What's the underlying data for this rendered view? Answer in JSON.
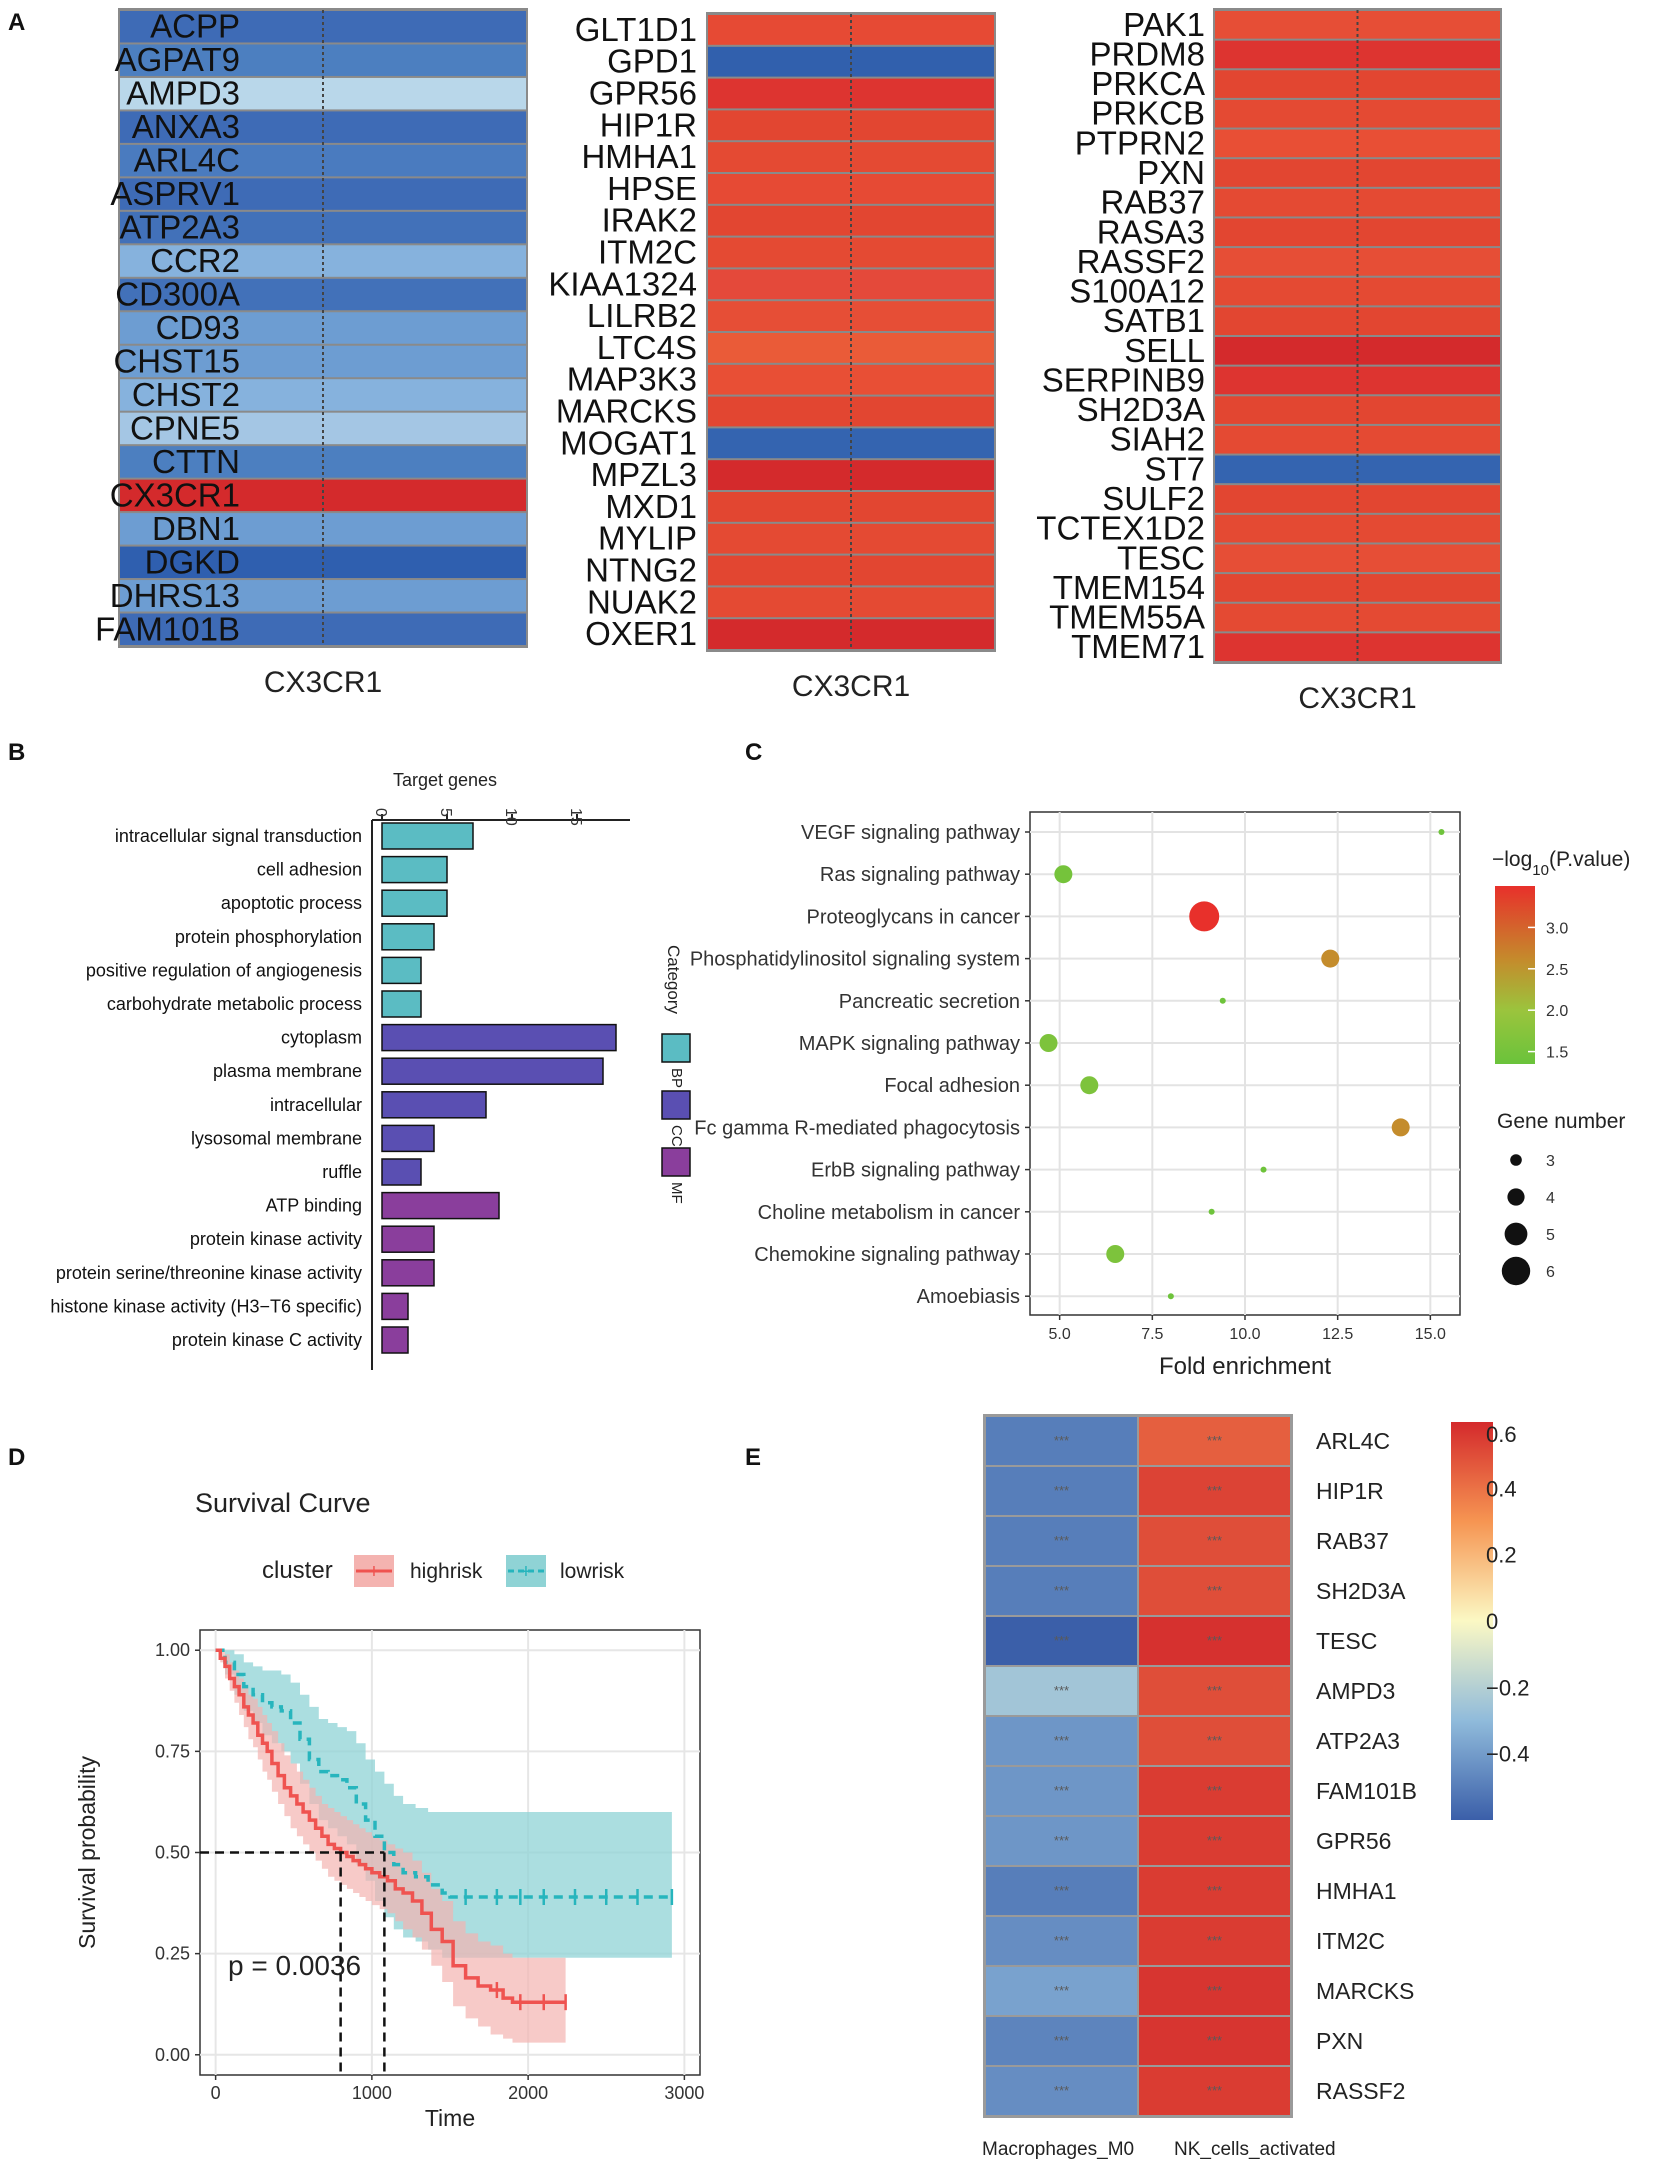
{
  "figure": {
    "panel_labels": [
      "A",
      "B",
      "C",
      "D",
      "E"
    ]
  },
  "colors": {
    "red_strong": "#d42a2c",
    "red": "#e24631",
    "orange_red": "#ea5b38",
    "blue_dark": "#2f5faf",
    "blue": "#3e6bb6",
    "blue_mid": "#4c7fc0",
    "blue_light": "#86b2dd",
    "blue_pale": "#b9d7ea",
    "bp": "#5bbcc3",
    "cc": "#5a4fb2",
    "mf": "#8a3e9c",
    "ci_high": "#f4b3b0",
    "ci_low": "#8fd3d5",
    "line_high": "#ef5350",
    "line_low": "#27b5bd"
  },
  "chart_data": [
    {
      "panel": "A",
      "type": "heatmap",
      "xlabel": "CX3CR1",
      "columns": [
        {
          "xlabel": "CX3CR1",
          "genes": [
            "ACPP",
            "AGPAT9",
            "AMPD3",
            "ANXA3",
            "ARL4C",
            "ASPRV1",
            "ATP2A3",
            "CCR2",
            "CD300A",
            "CD93",
            "CHST15",
            "CHST2",
            "CPNE5",
            "CTTN",
            "CX3CR1",
            "DBN1",
            "DGKD",
            "DHRS13",
            "FAM101B"
          ],
          "colors": [
            "#3e6bb6",
            "#4c7fc0",
            "#b9d7ea",
            "#3e6bb6",
            "#4a7bbf",
            "#3e6bb6",
            "#4271b9",
            "#86b2dd",
            "#4271b9",
            "#6d9dd2",
            "#6d9dd2",
            "#86b2dd",
            "#a4c6e4",
            "#4c7fc0",
            "#d42a2c",
            "#6d9dd2",
            "#2f5faf",
            "#6d9dd2",
            "#3e6bb6"
          ],
          "markers": "*******"
        },
        {
          "xlabel": "CX3CR1",
          "genes": [
            "GLT1D1",
            "GPD1",
            "GPR56",
            "HIP1R",
            "HMHA1",
            "HPSE",
            "IRAK2",
            "ITM2C",
            "KIAA1324",
            "LILRB2",
            "LTC4S",
            "MAP3K3",
            "MARCKS",
            "MOGAT1",
            "MPZL3",
            "MXD1",
            "MYLIP",
            "NTNG2",
            "NUAK2",
            "OXER1"
          ],
          "colors": [
            "#e64a34",
            "#3160ad",
            "#dd3430",
            "#e24631",
            "#e44a33",
            "#e64a34",
            "#e24631",
            "#e44a33",
            "#e4493a",
            "#e64e36",
            "#ea5b38",
            "#e84f35",
            "#e24631",
            "#3464b0",
            "#d42a2c",
            "#e24631",
            "#e44a33",
            "#e24631",
            "#e44a33",
            "#d42a2c"
          ],
          "markers": "*******"
        },
        {
          "xlabel": "CX3CR1",
          "genes": [
            "PAK1",
            "PRDM8",
            "PRKCA",
            "PRKCB",
            "PTPRN2",
            "PXN",
            "RAB37",
            "RASA3",
            "RASSF2",
            "S100A12",
            "SATB1",
            "SELL",
            "SERPINB9",
            "SH2D3A",
            "SIAH2",
            "ST7",
            "SULF2",
            "TCTEX1D2",
            "TESC",
            "TMEM154",
            "TMEM55A",
            "TMEM71"
          ],
          "colors": [
            "#e64e36",
            "#dd3430",
            "#e24631",
            "#e44a33",
            "#e84f35",
            "#e24631",
            "#e44a33",
            "#e24631",
            "#e64e36",
            "#e44a33",
            "#e24631",
            "#d42a2c",
            "#dd3430",
            "#e24631",
            "#e44a33",
            "#3464b0",
            "#e24631",
            "#e44a33",
            "#e64e36",
            "#e24631",
            "#e44a33",
            "#dd3430"
          ],
          "markers": "*******"
        }
      ]
    },
    {
      "panel": "B",
      "type": "bar",
      "orientation": "horizontal",
      "title": "Target genes",
      "xlim": [
        0,
        19
      ],
      "xticks": [
        0,
        5,
        10,
        15
      ],
      "categories": [
        "intracellular signal transduction",
        "cell adhesion",
        "apoptotic process",
        "protein phosphorylation",
        "positive regulation of angiogenesis",
        "carbohydrate metabolic process",
        "cytoplasm",
        "plasma membrane",
        "intracellular",
        "lysosomal membrane",
        "ruffle",
        "ATP binding",
        "protein kinase activity",
        "protein serine/threonine kinase activity",
        "histone kinase activity (H3−T6 specific)",
        "protein kinase C activity"
      ],
      "values": [
        7,
        5,
        5,
        4,
        3,
        3,
        18,
        17,
        8,
        4,
        3,
        9,
        4,
        4,
        2,
        2
      ],
      "groups": [
        "BP",
        "BP",
        "BP",
        "BP",
        "BP",
        "BP",
        "CC",
        "CC",
        "CC",
        "CC",
        "CC",
        "MF",
        "MF",
        "MF",
        "MF",
        "MF"
      ],
      "legend_title": "Category",
      "legend": [
        "BP",
        "CC",
        "MF"
      ]
    },
    {
      "panel": "C",
      "type": "scatter",
      "xlabel": "Fold enrichment",
      "xlim": [
        4.2,
        15.8
      ],
      "xticks": [
        5.0,
        7.5,
        10.0,
        12.5,
        15.0
      ],
      "xtick_labels": [
        "5.0",
        "7.5",
        "10.0",
        "12.5",
        "15.0"
      ],
      "categories": [
        "VEGF signaling pathway",
        "Ras signaling pathway",
        "Proteoglycans in cancer",
        "Phosphatidylinositol signaling system",
        "Pancreatic secretion",
        "MAPK signaling pathway",
        "Focal adhesion",
        "Fc gamma R-mediated phagocytosis",
        "ErbB signaling pathway",
        "Choline metabolism in cancer",
        "Chemokine signaling pathway",
        "Amoebiasis"
      ],
      "fold_enrichment": [
        15.3,
        5.1,
        8.9,
        12.3,
        9.4,
        4.7,
        5.8,
        14.2,
        10.5,
        9.1,
        6.5,
        8.0
      ],
      "gene_number": [
        2,
        4,
        6,
        4,
        2,
        4,
        4,
        4,
        2,
        2,
        4,
        2
      ],
      "neglog10_p": [
        1.4,
        1.5,
        3.5,
        2.6,
        1.4,
        1.6,
        1.6,
        2.6,
        1.4,
        1.4,
        1.6,
        1.4
      ],
      "color_legend_title_prefix": "−log",
      "color_legend_title_sub": "10",
      "color_legend_title_suffix": "(P.value)",
      "color_ticks": [
        1.5,
        2.0,
        2.5,
        3.0
      ],
      "color_tick_labels": [
        "1.5",
        "2.0",
        "2.5",
        "3.0"
      ],
      "color_range": [
        1.35,
        3.5
      ],
      "size_legend_title": "Gene number",
      "size_legend": [
        3,
        4,
        5,
        6
      ]
    },
    {
      "panel": "D",
      "type": "line",
      "title": "Survival Curve",
      "xlabel": "Time",
      "ylabel": "Survival probability",
      "xlim": [
        -100,
        3100
      ],
      "ylim": [
        -0.05,
        1.05
      ],
      "xticks": [
        0,
        1000,
        2000,
        3000
      ],
      "xtick_labels": [
        "0",
        "1000",
        "2000",
        "3000"
      ],
      "yticks": [
        0,
        0.25,
        0.5,
        0.75,
        1
      ],
      "ytick_labels": [
        "0.00",
        "0.25",
        "0.50",
        "0.75",
        "1.00"
      ],
      "legend_title": "cluster",
      "pvalue_text": "p = 0.0036",
      "median_line_y": 0.5,
      "series": [
        {
          "name": "highrisk",
          "x": [
            0,
            30,
            60,
            90,
            120,
            150,
            180,
            210,
            240,
            270,
            300,
            330,
            360,
            400,
            440,
            480,
            520,
            560,
            600,
            640,
            680,
            720,
            760,
            800,
            840,
            880,
            920,
            960,
            1000,
            1050,
            1100,
            1150,
            1200,
            1260,
            1320,
            1380,
            1450,
            1520,
            1600,
            1680,
            1760,
            1840,
            1900,
            2240
          ],
          "y": [
            1.0,
            0.98,
            0.96,
            0.93,
            0.91,
            0.89,
            0.86,
            0.84,
            0.82,
            0.79,
            0.77,
            0.75,
            0.72,
            0.69,
            0.66,
            0.64,
            0.62,
            0.6,
            0.58,
            0.56,
            0.54,
            0.52,
            0.51,
            0.5,
            0.49,
            0.48,
            0.47,
            0.46,
            0.45,
            0.44,
            0.43,
            0.41,
            0.4,
            0.38,
            0.35,
            0.31,
            0.28,
            0.22,
            0.19,
            0.17,
            0.16,
            0.14,
            0.13,
            0.13
          ],
          "ci_lower": [
            1.0,
            0.97,
            0.93,
            0.9,
            0.87,
            0.84,
            0.81,
            0.78,
            0.76,
            0.73,
            0.7,
            0.68,
            0.65,
            0.62,
            0.59,
            0.56,
            0.54,
            0.52,
            0.5,
            0.48,
            0.46,
            0.44,
            0.43,
            0.42,
            0.41,
            0.4,
            0.39,
            0.38,
            0.37,
            0.36,
            0.35,
            0.33,
            0.31,
            0.29,
            0.26,
            0.22,
            0.18,
            0.12,
            0.09,
            0.07,
            0.05,
            0.04,
            0.03,
            0.03
          ],
          "ci_upper": [
            1.0,
            1.0,
            0.99,
            0.97,
            0.95,
            0.93,
            0.91,
            0.89,
            0.88,
            0.86,
            0.84,
            0.82,
            0.8,
            0.77,
            0.74,
            0.72,
            0.7,
            0.68,
            0.66,
            0.64,
            0.62,
            0.61,
            0.6,
            0.59,
            0.58,
            0.57,
            0.56,
            0.55,
            0.54,
            0.53,
            0.52,
            0.51,
            0.5,
            0.48,
            0.45,
            0.41,
            0.38,
            0.33,
            0.3,
            0.28,
            0.27,
            0.25,
            0.24,
            0.24
          ],
          "censor_x": [
            1800,
            1950,
            2100,
            2240
          ]
        },
        {
          "name": "lowrisk",
          "x": [
            0,
            60,
            120,
            180,
            240,
            300,
            360,
            420,
            480,
            540,
            600,
            660,
            720,
            780,
            840,
            900,
            960,
            1020,
            1080,
            1140,
            1200,
            1280,
            1360,
            1450,
            1500,
            2920
          ],
          "y": [
            1.0,
            0.97,
            0.94,
            0.91,
            0.89,
            0.87,
            0.86,
            0.85,
            0.82,
            0.78,
            0.73,
            0.7,
            0.69,
            0.68,
            0.66,
            0.62,
            0.58,
            0.54,
            0.5,
            0.47,
            0.45,
            0.44,
            0.42,
            0.4,
            0.39,
            0.39
          ],
          "ci_lower": [
            1.0,
            0.94,
            0.89,
            0.85,
            0.82,
            0.79,
            0.77,
            0.75,
            0.72,
            0.67,
            0.62,
            0.58,
            0.56,
            0.54,
            0.52,
            0.47,
            0.43,
            0.38,
            0.34,
            0.31,
            0.29,
            0.28,
            0.26,
            0.24,
            0.24,
            0.24
          ],
          "ci_upper": [
            1.0,
            1.0,
            0.99,
            0.97,
            0.96,
            0.95,
            0.95,
            0.94,
            0.92,
            0.89,
            0.86,
            0.83,
            0.82,
            0.81,
            0.8,
            0.77,
            0.73,
            0.7,
            0.67,
            0.64,
            0.62,
            0.61,
            0.6,
            0.6,
            0.6,
            0.6
          ],
          "censor_x": [
            1600,
            1800,
            1950,
            2100,
            2300,
            2500,
            2700,
            2920
          ]
        }
      ]
    },
    {
      "panel": "E",
      "type": "heatmap",
      "columns": [
        "Macrophages_M0",
        "NK_cells_activated"
      ],
      "rows": [
        "ARL4C",
        "HIP1R",
        "RAB37",
        "SH2D3A",
        "TESC",
        "AMPD3",
        "ATP2A3",
        "FAM101B",
        "GPR56",
        "HMHA1",
        "ITM2C",
        "MARCKS",
        "PXN",
        "RASSF2"
      ],
      "values": [
        [
          -0.5,
          0.45
        ],
        [
          -0.5,
          0.53
        ],
        [
          -0.5,
          0.5
        ],
        [
          -0.5,
          0.5
        ],
        [
          -0.6,
          0.58
        ],
        [
          -0.25,
          0.5
        ],
        [
          -0.42,
          0.5
        ],
        [
          -0.42,
          0.55
        ],
        [
          -0.42,
          0.55
        ],
        [
          -0.5,
          0.55
        ],
        [
          -0.45,
          0.55
        ],
        [
          -0.38,
          0.57
        ],
        [
          -0.48,
          0.57
        ],
        [
          -0.45,
          0.55
        ]
      ],
      "cell_label": "***",
      "color_range": [
        -0.6,
        0.6
      ],
      "colorbar_ticks": [
        0.6,
        0.4,
        0.2,
        0,
        -0.2,
        -0.4
      ],
      "colorbar_tick_labels": [
        "0.6",
        "0.4",
        "0.2",
        "0",
        "−0.2",
        "−0.4"
      ]
    }
  ]
}
